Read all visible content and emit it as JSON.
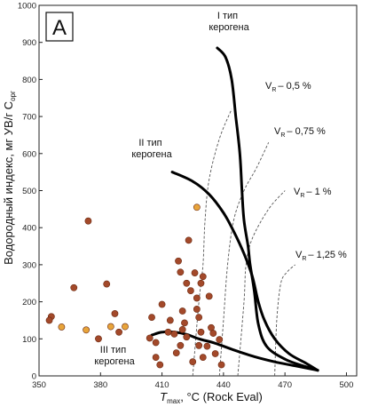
{
  "chart_data": {
    "type": "scatter",
    "panel_label": "A",
    "xlabel": {
      "main": "T",
      "sub": "max",
      "rest": ", °C (Rock Eval)"
    },
    "ylabel": {
      "main": "Водородный индекс, мг УВ/г C",
      "sub": "орг"
    },
    "xlim": [
      350,
      505
    ],
    "ylim": [
      0,
      1000
    ],
    "xticks": [
      350,
      380,
      410,
      440,
      470,
      500
    ],
    "yticks": [
      0,
      100,
      200,
      300,
      400,
      500,
      600,
      700,
      800,
      900,
      1000
    ],
    "grid": false,
    "kerogen_curves": [
      {
        "label_lines": [
          "I тип",
          "керогена"
        ],
        "points": [
          [
            437,
            885
          ],
          [
            441,
            860
          ],
          [
            444,
            800
          ],
          [
            446,
            700
          ],
          [
            448,
            600
          ],
          [
            449,
            500
          ],
          [
            450,
            420
          ],
          [
            452,
            350
          ],
          [
            453,
            300
          ],
          [
            455,
            230
          ],
          [
            457,
            140
          ],
          [
            461,
            80
          ],
          [
            470,
            45
          ],
          [
            480,
            25
          ],
          [
            486,
            15
          ]
        ]
      },
      {
        "label_lines": [
          "II тип",
          "керогена"
        ],
        "points": [
          [
            415,
            550
          ],
          [
            425,
            525
          ],
          [
            433,
            490
          ],
          [
            440,
            440
          ],
          [
            445,
            390
          ],
          [
            450,
            330
          ],
          [
            454,
            270
          ],
          [
            457,
            200
          ],
          [
            460,
            150
          ],
          [
            465,
            100
          ],
          [
            472,
            60
          ],
          [
            480,
            35
          ],
          [
            486,
            15
          ]
        ]
      },
      {
        "label_lines": [
          "III тип",
          "керогена"
        ],
        "points": [
          [
            405,
            110
          ],
          [
            410,
            118
          ],
          [
            416,
            118
          ],
          [
            422,
            112
          ],
          [
            428,
            100
          ],
          [
            436,
            88
          ],
          [
            445,
            70
          ],
          [
            455,
            52
          ],
          [
            465,
            38
          ],
          [
            475,
            27
          ],
          [
            486,
            15
          ]
        ]
      }
    ],
    "vitrinite_lines": [
      {
        "label_main": "V",
        "label_sub": "R",
        "label_value": "– 0,5 %",
        "points": [
          [
            425,
            0
          ],
          [
            428,
            200
          ],
          [
            430,
            300
          ],
          [
            431,
            420
          ],
          [
            433,
            530
          ],
          [
            438,
            640
          ],
          [
            444,
            720
          ]
        ]
      },
      {
        "label_main": "V",
        "label_sub": "R",
        "label_value": "– 0,75 %",
        "points": [
          [
            438,
            0
          ],
          [
            440,
            150
          ],
          [
            442,
            300
          ],
          [
            445,
            420
          ],
          [
            450,
            500
          ],
          [
            456,
            560
          ],
          [
            462,
            630
          ]
        ]
      },
      {
        "label_main": "V",
        "label_sub": "R",
        "label_value": "– 1 %",
        "points": [
          [
            447,
            0
          ],
          [
            450,
            200
          ],
          [
            451,
            300
          ],
          [
            454,
            370
          ],
          [
            462,
            450
          ],
          [
            470,
            500
          ]
        ]
      },
      {
        "label_main": "V",
        "label_sub": "R",
        "label_value": "– 1,25 %",
        "points": [
          [
            465,
            0
          ],
          [
            466,
            150
          ],
          [
            468,
            250
          ],
          [
            471,
            280
          ],
          [
            475,
            300
          ]
        ]
      }
    ],
    "series": [
      {
        "color": "#a3492a",
        "points": [
          [
            356,
            160
          ],
          [
            355,
            150
          ],
          [
            367,
            238
          ],
          [
            374,
            418
          ],
          [
            379,
            100
          ],
          [
            383,
            248
          ],
          [
            387,
            168
          ],
          [
            389,
            118
          ],
          [
            404,
            102
          ],
          [
            405,
            158
          ],
          [
            407,
            90
          ],
          [
            407,
            50
          ],
          [
            409,
            30
          ],
          [
            410,
            193
          ],
          [
            413,
            118
          ],
          [
            414,
            150
          ],
          [
            416,
            113
          ],
          [
            417,
            62
          ],
          [
            418,
            310
          ],
          [
            419,
            280
          ],
          [
            419,
            82
          ],
          [
            420,
            175
          ],
          [
            420,
            125
          ],
          [
            421,
            143
          ],
          [
            422,
            250
          ],
          [
            422,
            105
          ],
          [
            423,
            366
          ],
          [
            424,
            230
          ],
          [
            425,
            38
          ],
          [
            426,
            278
          ],
          [
            427,
            210
          ],
          [
            427,
            180
          ],
          [
            428,
            158
          ],
          [
            428,
            82
          ],
          [
            429,
            250
          ],
          [
            429,
            118
          ],
          [
            430,
            268
          ],
          [
            430,
            50
          ],
          [
            432,
            80
          ],
          [
            433,
            215
          ],
          [
            434,
            130
          ],
          [
            435,
            115
          ],
          [
            436,
            60
          ],
          [
            438,
            98
          ],
          [
            439,
            30
          ]
        ]
      },
      {
        "color": "#e8a43a",
        "points": [
          [
            361,
            132
          ],
          [
            373,
            124
          ],
          [
            385,
            133
          ],
          [
            392,
            133
          ],
          [
            427,
            455
          ]
        ]
      }
    ]
  }
}
